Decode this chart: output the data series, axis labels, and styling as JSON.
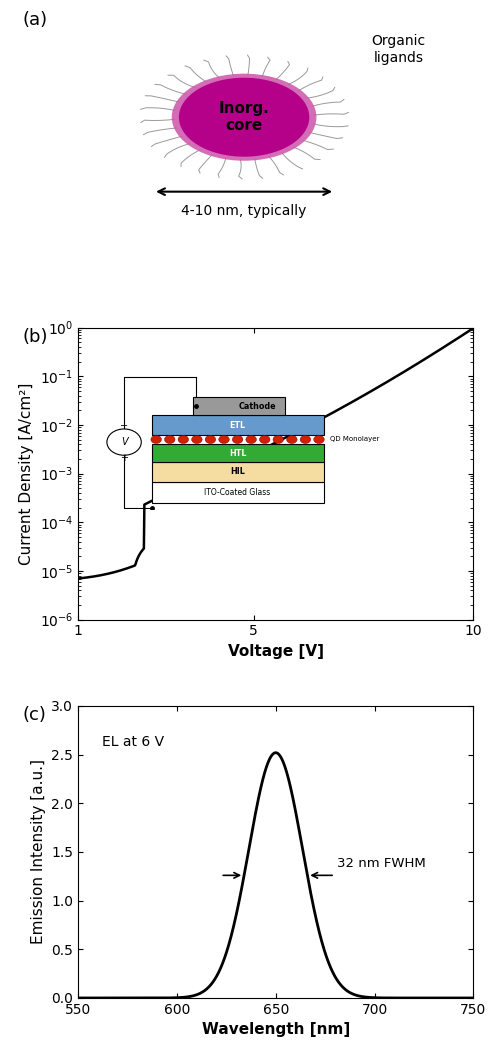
{
  "panel_a": {
    "label": "(a)",
    "core_label": "Inorg.\ncore",
    "core_color": "#b5008a",
    "shell_color": "#cc55aa",
    "ligand_color": "#999999",
    "outer_label": "Organic\nligands",
    "size_label": "4-10 nm, typically"
  },
  "panel_b": {
    "label": "(b)",
    "xlabel": "Voltage [V]",
    "ylabel": "Current Density [A/cm²]",
    "xlim": [
      1,
      10
    ],
    "ylim_log": [
      -6,
      0
    ],
    "x_ticks": [
      1,
      5,
      10
    ],
    "line_color": "black",
    "inset": {
      "cathode_color": "#999999",
      "etl_color": "#6699cc",
      "qd_color": "#cc2200",
      "htl_color": "#33aa33",
      "hil_color": "#f5dca0",
      "ito_color": "#ffffff",
      "cathode_label": "Cathode",
      "etl_label": "ETL",
      "htl_label": "HTL",
      "hil_label": "HIL",
      "ito_label": "ITO-Coated Glass",
      "qd_label": "QD Monolayer"
    }
  },
  "panel_c": {
    "label": "(c)",
    "xlabel": "Wavelength [nm]",
    "ylabel": "Emission Intensity [a.u.]",
    "xlim": [
      550,
      750
    ],
    "ylim": [
      0,
      3
    ],
    "peak_wl": 650,
    "peak_intensity": 2.52,
    "fwhm": 32,
    "annotation_text": "32 nm FWHM",
    "el_label": "EL at 6 V",
    "x_ticks": [
      550,
      600,
      650,
      700,
      750
    ],
    "y_ticks": [
      0,
      0.5,
      1.0,
      1.5,
      2.0,
      2.5,
      3.0
    ]
  },
  "figure_bg": "#ffffff",
  "tick_fontsize": 10,
  "label_fontsize": 11,
  "panel_label_fontsize": 13
}
